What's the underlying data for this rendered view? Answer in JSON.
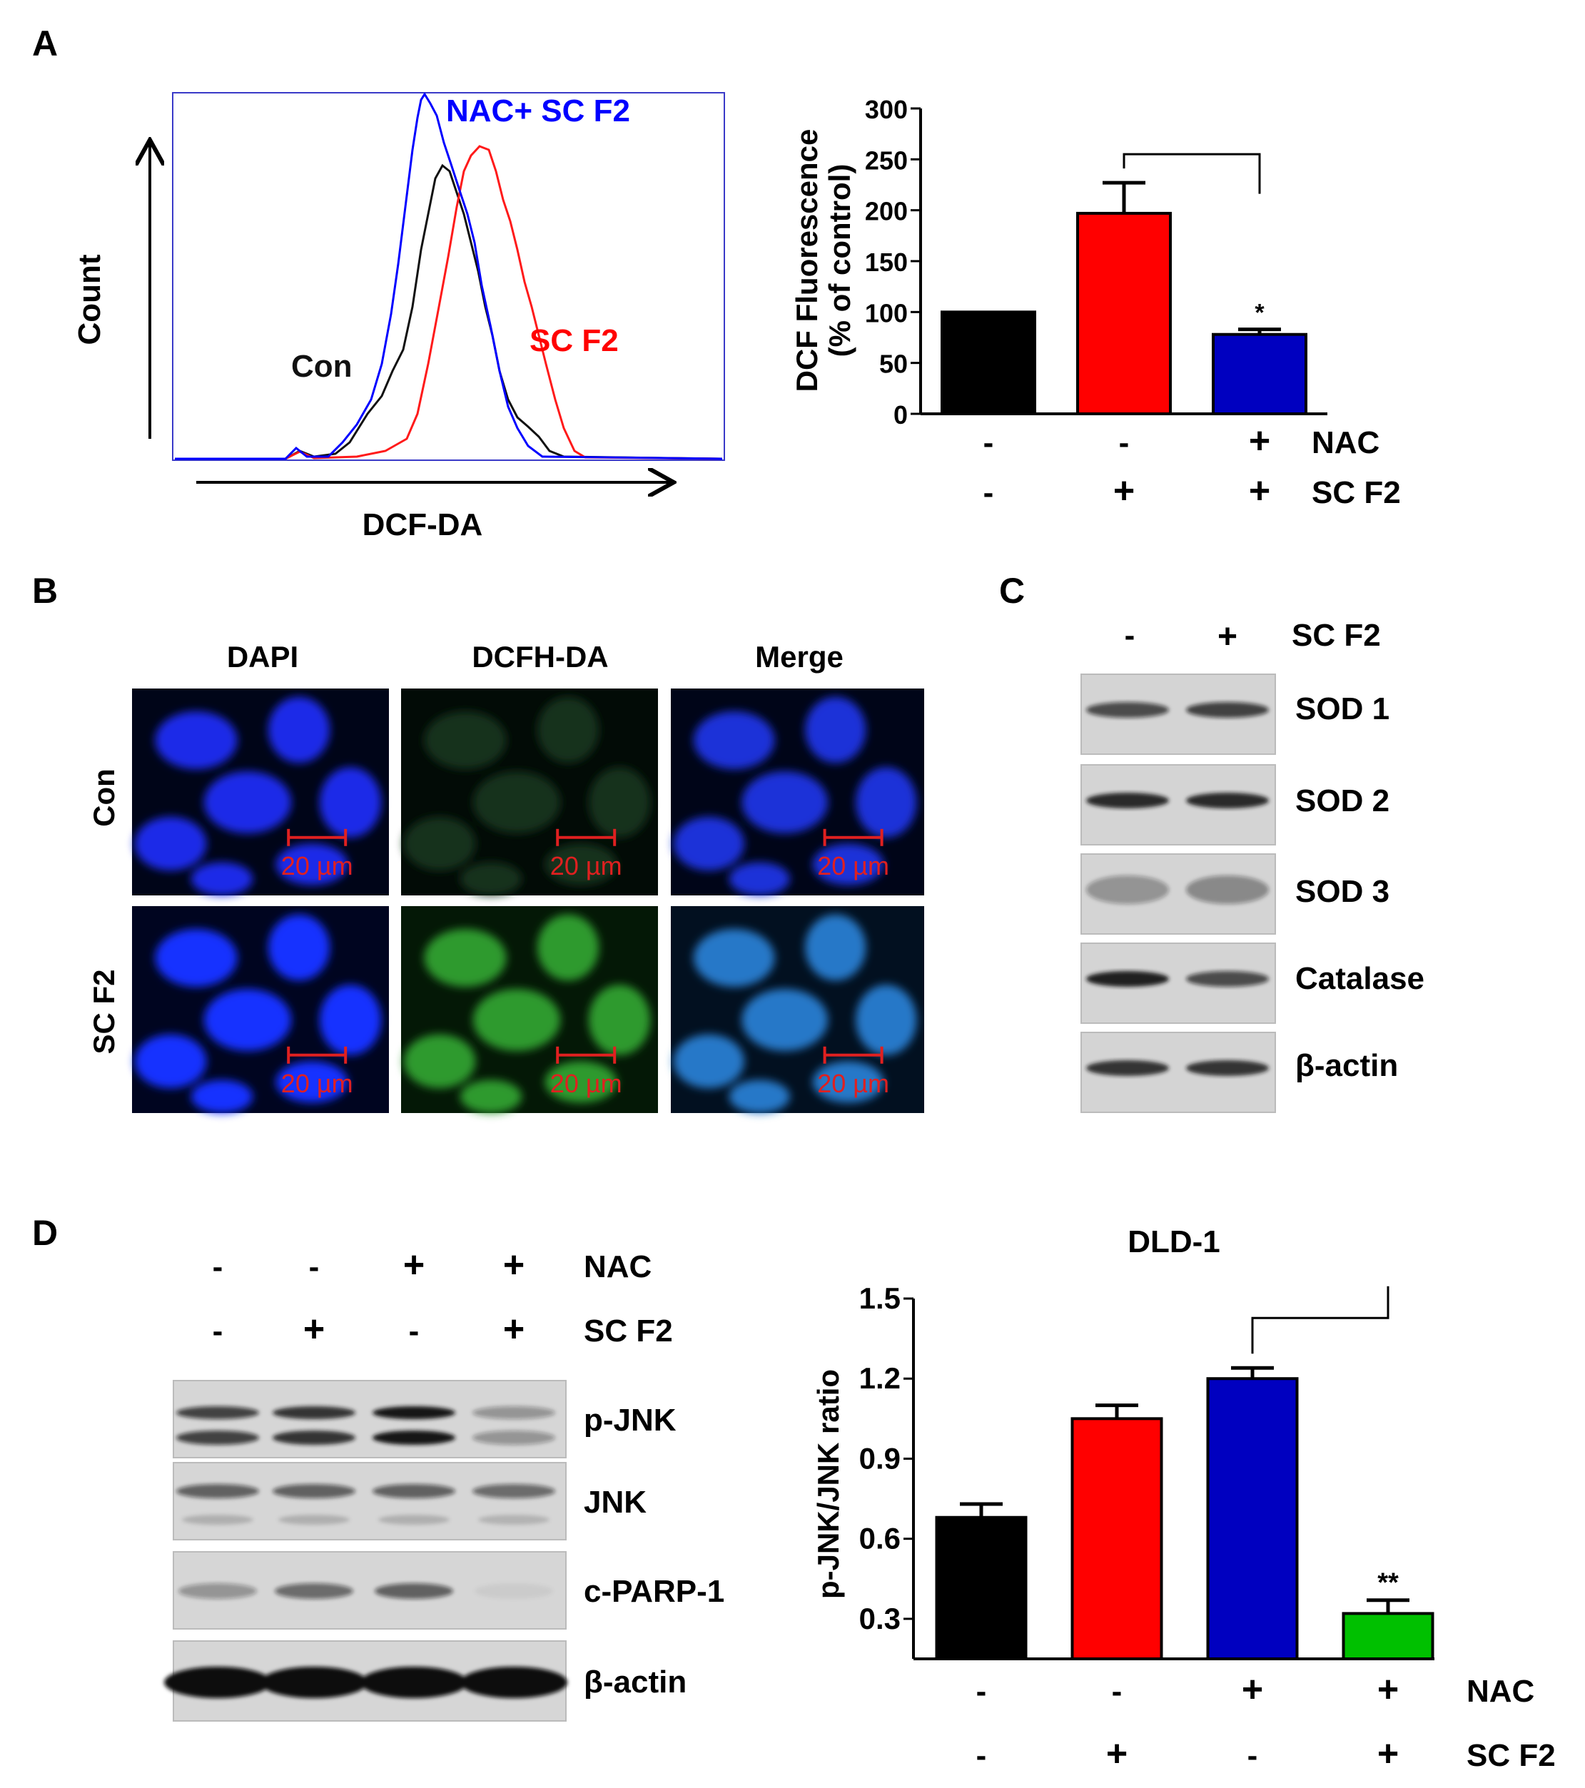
{
  "panels": {
    "A": {
      "letter": "A",
      "histogram": {
        "y_label": "Count",
        "x_label": "DCF-DA",
        "curve_labels": {
          "nac": "NAC+ SC F2",
          "sc": "SC F2",
          "con": "Con"
        },
        "colors": {
          "nac": "#0000ff",
          "sc": "#ff0000",
          "con": "#000000",
          "frame": "#2f2fd0"
        }
      }
    },
    "B": {
      "letter": "B",
      "columns": [
        "DAPI",
        "DCFH-DA",
        "Merge"
      ],
      "rows": [
        "Con",
        "SC F2"
      ],
      "scale_bar_label": "20 µm"
    },
    "C": {
      "letter": "C",
      "header": {
        "minus": "-",
        "plus": "+",
        "treatment": "SC F2"
      },
      "bands": [
        "SOD 1",
        "SOD 2",
        "SOD 3",
        "Catalase",
        "β-actin"
      ]
    },
    "D": {
      "letter": "D",
      "blot_rows": [
        {
          "name": "NAC",
          "signs": [
            "-",
            "-",
            "+",
            "+"
          ]
        },
        {
          "name": "SC F2",
          "signs": [
            "-",
            "+",
            "-",
            "+"
          ]
        }
      ],
      "bands": [
        "p-JNK",
        "JNK",
        "c-PARP-1",
        "β-actin"
      ]
    }
  },
  "chart_data": [
    {
      "type": "bar",
      "panel": "A",
      "ylabel_lines": [
        "DCF  Fluorescence",
        "(% of control)"
      ],
      "ylim": [
        0,
        300
      ],
      "yticks": [
        "0",
        "50",
        "100",
        "150",
        "200",
        "250",
        "300"
      ],
      "values": [
        100,
        197,
        78
      ],
      "errors": [
        0,
        30,
        5
      ],
      "colors": [
        "#000000",
        "#ff0000",
        "#0000c0"
      ],
      "conditions": [
        {
          "name": "NAC",
          "signs": [
            "-",
            "-",
            "+"
          ]
        },
        {
          "name": "SC F2",
          "signs": [
            "-",
            "+",
            "+"
          ]
        }
      ],
      "significance": {
        "from": 1,
        "to": 2,
        "label": "*"
      }
    },
    {
      "type": "bar",
      "panel": "D",
      "title": "DLD-1",
      "ylabel": "p-JNK/JNK ratio",
      "ylim": [
        0.15,
        1.5
      ],
      "yticks": [
        "0.3",
        "0.6",
        "0.9",
        "1.2",
        "1.5"
      ],
      "values": [
        0.68,
        1.05,
        1.2,
        0.32
      ],
      "errors": [
        0.05,
        0.05,
        0.04,
        0.05
      ],
      "colors": [
        "#000000",
        "#ff0000",
        "#0000c0",
        "#00c000"
      ],
      "conditions": [
        {
          "name": "NAC",
          "signs": [
            "-",
            "-",
            "+",
            "+"
          ]
        },
        {
          "name": "SC F2",
          "signs": [
            "-",
            "+",
            "-",
            "+"
          ]
        }
      ],
      "significance": {
        "from": 2,
        "to": 3,
        "label": "**"
      }
    }
  ]
}
